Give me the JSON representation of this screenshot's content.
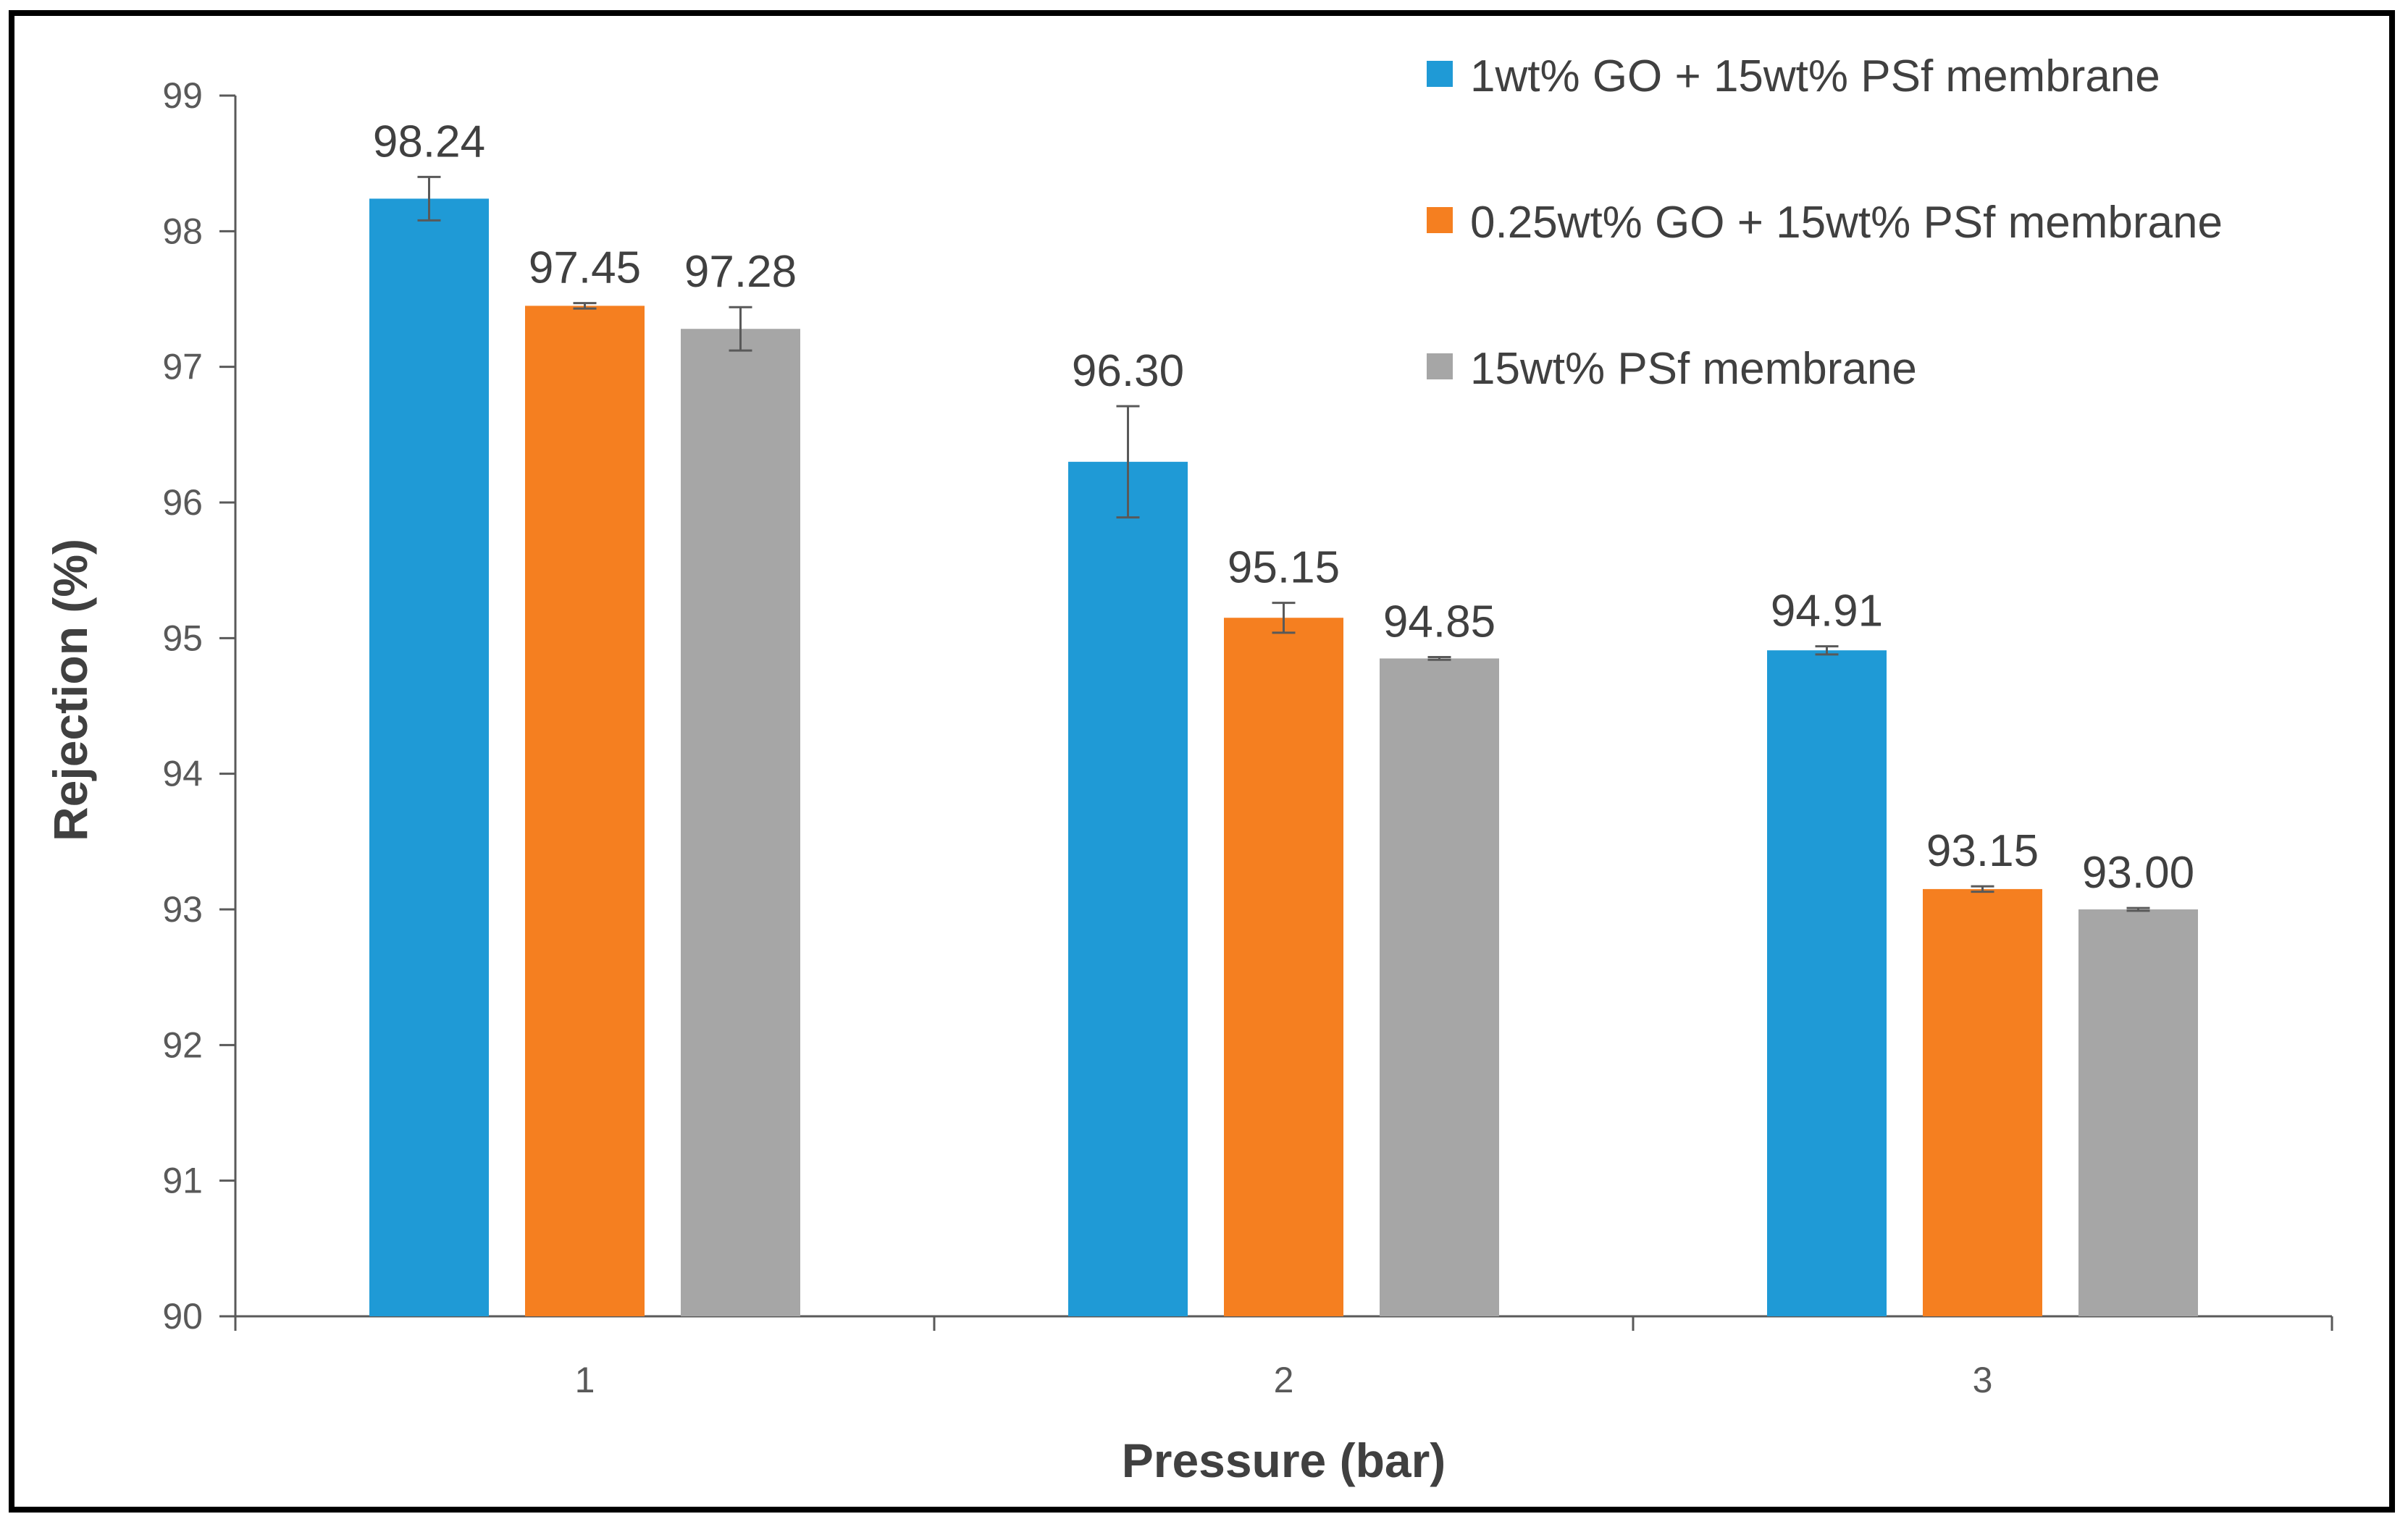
{
  "chart_data": {
    "type": "bar",
    "title": "",
    "xlabel": "Pressure (bar)",
    "ylabel": "Rejection (%)",
    "ylim": [
      90,
      99
    ],
    "yticks": [
      "90",
      "91",
      "92",
      "93",
      "94",
      "95",
      "96",
      "97",
      "98",
      "99"
    ],
    "categories": [
      "1",
      "2",
      "3"
    ],
    "grid": false,
    "legend_position": "top-right",
    "series": [
      {
        "name": "1wt% GO + 15wt% PSf membrane",
        "color": "#1f9ad6",
        "values": [
          98.24,
          96.3,
          94.91
        ],
        "labels": [
          "98.24",
          "96.30",
          "94.91"
        ],
        "errors": [
          0.16,
          0.41,
          0.03
        ]
      },
      {
        "name": "0.25wt% GO + 15wt% PSf membrane",
        "color": "#f57f20",
        "values": [
          97.45,
          95.15,
          93.15
        ],
        "labels": [
          "97.45",
          "95.15",
          "93.15"
        ],
        "errors": [
          0.02,
          0.11,
          0.02
        ]
      },
      {
        "name": "15wt% PSf membrane",
        "color": "#a6a6a6",
        "values": [
          97.28,
          94.85,
          93.0
        ],
        "labels": [
          "97.28",
          "94.85",
          "93.00"
        ],
        "errors": [
          0.16,
          0.01,
          0.01
        ]
      }
    ]
  }
}
